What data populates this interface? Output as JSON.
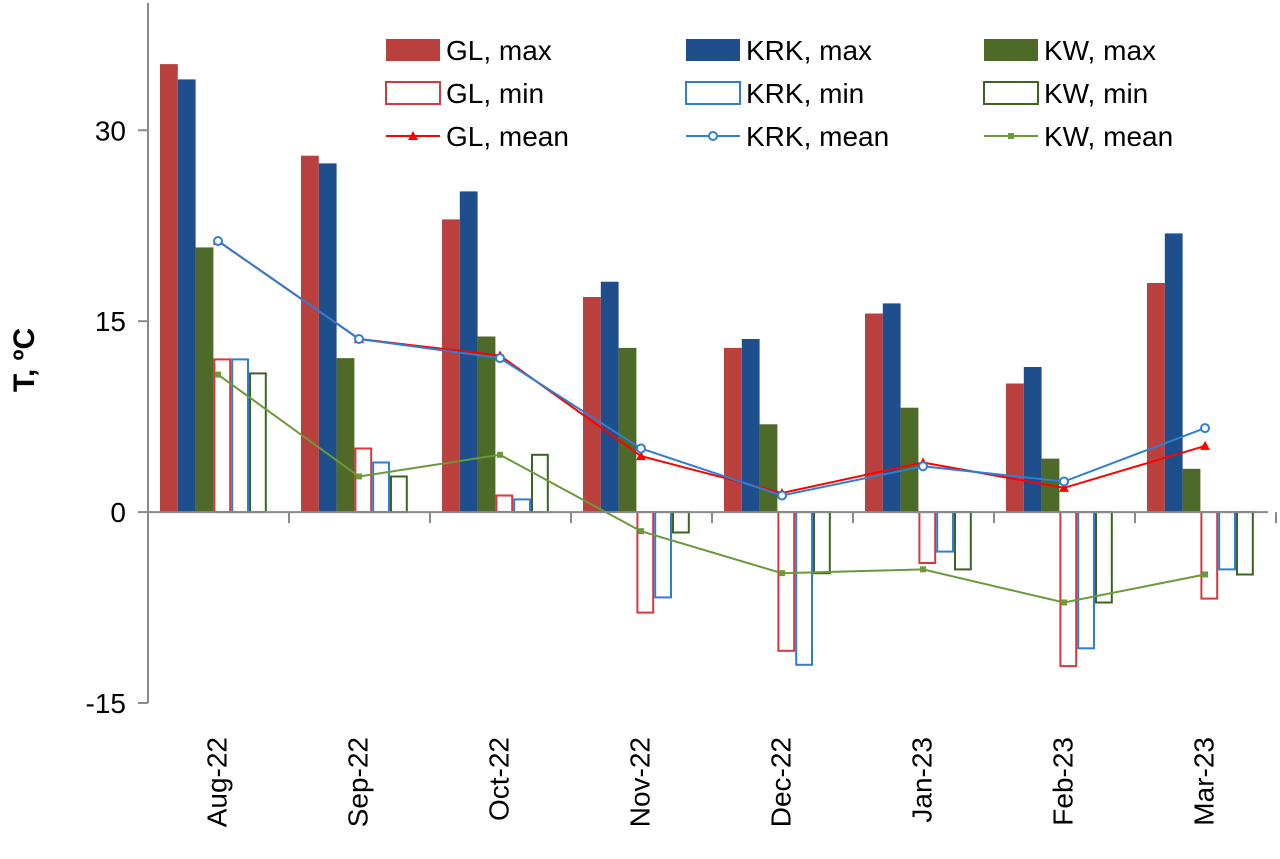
{
  "chart_data": {
    "type": "bar",
    "ylabel": "T, ºC",
    "ylim": [
      -15,
      40
    ],
    "yticks": [
      -15,
      0,
      15,
      30
    ],
    "categories": [
      "Aug-22",
      "Sep-22",
      "Oct-22",
      "Nov-22",
      "Dec-22",
      "Jan-23",
      "Feb-23",
      "Mar-23"
    ],
    "bar_series": [
      {
        "name": "GL, max",
        "style": "filled",
        "color": "#b9403c",
        "values": [
          35.2,
          28.0,
          23.0,
          16.9,
          12.9,
          15.6,
          10.1,
          18.0
        ]
      },
      {
        "name": "KRK, max",
        "style": "filled",
        "color": "#1f4e8c",
        "values": [
          34.0,
          27.4,
          25.2,
          18.1,
          13.6,
          16.4,
          11.4,
          21.9
        ]
      },
      {
        "name": "KW, max",
        "style": "filled",
        "color": "#4e6a28",
        "values": [
          20.8,
          12.1,
          13.8,
          12.9,
          6.9,
          8.2,
          4.2,
          3.4
        ]
      },
      {
        "name": "GL, min",
        "style": "outline",
        "color": "#d9363e",
        "values": [
          12.0,
          5.0,
          1.3,
          -7.9,
          -10.9,
          -4.0,
          -12.1,
          -6.8
        ]
      },
      {
        "name": "KRK, min",
        "style": "outline",
        "color": "#2e7fd1",
        "values": [
          12.0,
          3.9,
          1.0,
          -6.7,
          -12.0,
          -3.1,
          -10.7,
          -4.5
        ]
      },
      {
        "name": "KW, min",
        "style": "outline",
        "color": "#3b6321",
        "values": [
          10.9,
          2.8,
          4.5,
          -1.6,
          -4.8,
          -4.5,
          -7.1,
          -4.9
        ]
      }
    ],
    "line_series": [
      {
        "name": "GL, mean",
        "color": "#ff0000",
        "marker": "triangle",
        "values": [
          21.3,
          13.6,
          12.3,
          4.4,
          1.5,
          3.9,
          1.9,
          5.2
        ]
      },
      {
        "name": "KRK, mean",
        "color": "#2e7fd1",
        "marker": "circle",
        "values": [
          21.3,
          13.6,
          12.1,
          5.0,
          1.3,
          3.6,
          2.4,
          6.6
        ]
      },
      {
        "name": "KW, mean",
        "color": "#6a9a3a",
        "marker": "square",
        "values": [
          10.8,
          2.8,
          4.5,
          -1.5,
          -4.8,
          -4.5,
          -7.1,
          -4.9
        ]
      }
    ],
    "legend": {
      "placement": "top",
      "items": [
        "GL, max",
        "KRK, max",
        "KW, max",
        "GL, min",
        "KRK, min",
        "KW, min",
        "GL, mean",
        "KRK, mean",
        "KW, mean"
      ]
    },
    "grid": false
  }
}
